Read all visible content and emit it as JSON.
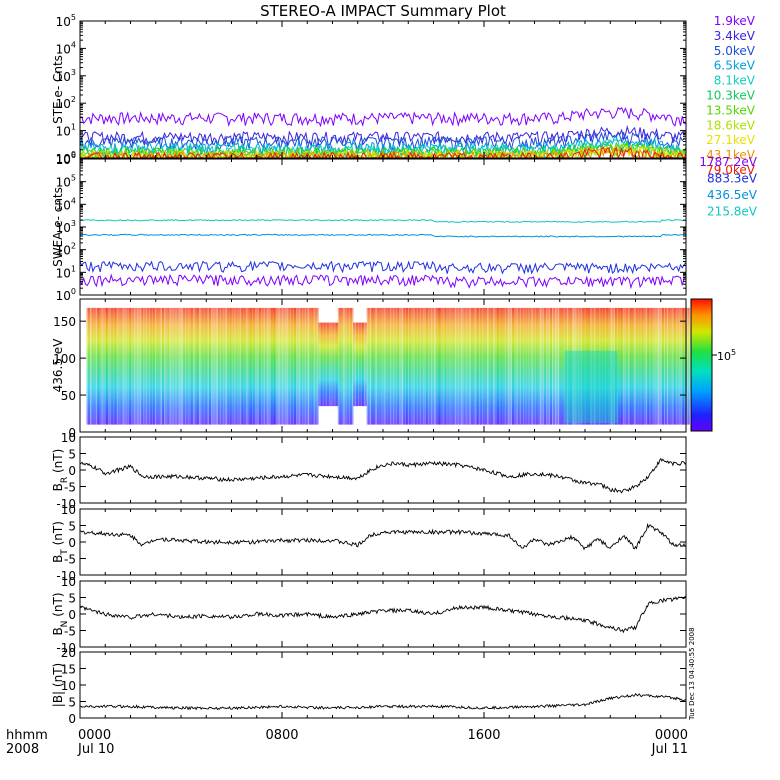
{
  "title": "STEREO-A IMPACT Summary Plot",
  "stamp": "Tue Dec 13 04:40:55 2008",
  "x_axis": {
    "row1": {
      "label": "hhmm",
      "ticks": [
        "0000",
        "0800",
        "1600",
        "0000"
      ]
    },
    "row2": {
      "label": "2008",
      "ticks": [
        "Jul 10",
        "",
        "",
        "Jul 11"
      ]
    },
    "tick_hours": [
      0,
      8,
      16,
      24
    ]
  },
  "legend": {
    "ste": [
      {
        "label": "1.9keV",
        "color": "#8000ff"
      },
      {
        "label": "3.4keV",
        "color": "#3a22e0"
      },
      {
        "label": "5.0keV",
        "color": "#1d4fd8"
      },
      {
        "label": "6.5keV",
        "color": "#00a0e0"
      },
      {
        "label": "8.1keV",
        "color": "#10d0c0"
      },
      {
        "label": "10.3keV",
        "color": "#10c860"
      },
      {
        "label": "13.5keV",
        "color": "#50d800"
      },
      {
        "label": "18.6keV",
        "color": "#b0e000"
      },
      {
        "label": "27.1keV",
        "color": "#e8e000"
      },
      {
        "label": "43.1keV",
        "color": "#f09000"
      },
      {
        "label": "79.0keV",
        "color": "#e82000"
      }
    ],
    "swea": [
      {
        "label": "1787.2eV",
        "color": "#8000ff"
      },
      {
        "label": "883.3eV",
        "color": "#2030e0"
      },
      {
        "label": "436.5eV",
        "color": "#0090e0"
      },
      {
        "label": "215.8eV",
        "color": "#10c8c0"
      }
    ]
  },
  "chart_data": [
    {
      "type": "line",
      "panel": "STE",
      "ylabel": "STE e- Cnts",
      "yscale": "log",
      "ylim": [
        1,
        100000
      ],
      "yticks": [
        "10^0",
        "10^1",
        "10^2",
        "10^3",
        "10^4",
        "10^5"
      ],
      "x_hours": [
        0,
        24
      ],
      "series": [
        {
          "name": "1.9keV",
          "level": 30
        },
        {
          "name": "3.4keV",
          "level": 6
        },
        {
          "name": "5.0keV",
          "level": 4
        },
        {
          "name": "6.5keV",
          "level": 2.5
        },
        {
          "name": "8.1keV",
          "level": 2
        },
        {
          "name": "10.3keV",
          "level": 1.7
        },
        {
          "name": "13.5keV",
          "level": 1.5
        },
        {
          "name": "18.6keV",
          "level": 1.3
        },
        {
          "name": "27.1keV",
          "level": 1.2
        },
        {
          "name": "43.1keV",
          "level": 1.1
        },
        {
          "name": "79.0keV",
          "level": 1.05
        }
      ]
    },
    {
      "type": "line",
      "panel": "SWEA",
      "ylabel": "SWEA e- cnts",
      "yscale": "log",
      "ylim": [
        1,
        1000000
      ],
      "yticks": [
        "10^0",
        "10^1",
        "10^2",
        "10^3",
        "10^4",
        "10^5",
        "10^6"
      ],
      "x_hours": [
        0,
        24
      ],
      "series": [
        {
          "name": "215.8eV",
          "level": 2000
        },
        {
          "name": "436.5eV",
          "level": 450
        },
        {
          "name": "883.3eV",
          "level": 20
        },
        {
          "name": "1787.2eV",
          "level": 5
        }
      ]
    },
    {
      "type": "heatmap",
      "panel": "PAD",
      "ylabel": "436.5 eV",
      "ylim": [
        0,
        180
      ],
      "yticks": [
        0,
        50,
        100,
        150
      ],
      "colorbar_label": "10^5",
      "x_hours": [
        0,
        24
      ]
    },
    {
      "type": "line",
      "panel": "BR",
      "ylabel": "B_R (nT)",
      "ylim": [
        -10,
        10
      ],
      "yticks": [
        10,
        5,
        0,
        -5,
        -10
      ],
      "x": [
        0,
        0.5,
        1,
        1.5,
        2,
        2.5,
        3,
        4,
        5,
        6,
        7,
        8,
        9,
        10,
        11,
        11.5,
        12,
        12.5,
        13,
        14,
        15,
        16,
        17,
        18,
        19,
        20,
        20.5,
        21,
        21.5,
        22,
        22.5,
        23,
        23.5,
        24
      ],
      "y": [
        2,
        1,
        -1,
        0,
        1,
        -2,
        -2,
        -2,
        -2.5,
        -3,
        -2.5,
        -2,
        -1.5,
        -2,
        -2.5,
        0,
        1.5,
        2,
        1.5,
        2,
        1.5,
        0,
        -2,
        -1,
        -2,
        -4,
        -4,
        -6,
        -6.5,
        -5,
        -2,
        3,
        2,
        2
      ]
    },
    {
      "type": "line",
      "panel": "BT",
      "ylabel": "B_T (nT)",
      "ylim": [
        -10,
        10
      ],
      "yticks": [
        10,
        5,
        0,
        -5,
        -10
      ],
      "x": [
        0,
        1,
        2,
        2.5,
        3,
        4,
        5,
        6,
        7,
        8,
        9,
        10,
        11,
        11.5,
        12,
        13,
        14,
        15,
        16,
        17,
        17.5,
        18,
        18.5,
        19,
        19.5,
        20,
        20.5,
        21,
        21.5,
        22,
        22.5,
        23,
        23.5,
        24
      ],
      "y": [
        3,
        2.5,
        2,
        -1,
        1,
        0.5,
        0,
        0,
        0,
        0.5,
        0.5,
        0.5,
        -1,
        2,
        3,
        3,
        3,
        3,
        2.5,
        2,
        -2,
        1,
        -1,
        0,
        1.5,
        -2,
        1,
        -2,
        2,
        -2,
        5,
        3,
        -1,
        -1
      ]
    },
    {
      "type": "line",
      "panel": "BN",
      "ylabel": "B_N (nT)",
      "ylim": [
        -10,
        10
      ],
      "yticks": [
        10,
        5,
        0,
        -5,
        -10
      ],
      "x": [
        0,
        1,
        2,
        3,
        4,
        5,
        6,
        7,
        8,
        9,
        10,
        11,
        12,
        13,
        14,
        15,
        16,
        17,
        18,
        19,
        20,
        21,
        21.5,
        22,
        22.5,
        23,
        24
      ],
      "y": [
        2,
        0,
        -1,
        0,
        -1,
        -0.5,
        -1,
        0,
        -0.5,
        0,
        -1,
        0,
        1,
        1,
        0,
        2,
        2,
        1,
        0,
        -1,
        -2,
        -4,
        -5,
        -4,
        3,
        4,
        5
      ]
    },
    {
      "type": "line",
      "panel": "B",
      "ylabel": "|B| (nT)",
      "ylim": [
        0,
        20
      ],
      "yticks": [
        20,
        15,
        10,
        5,
        0
      ],
      "x": [
        0,
        2,
        4,
        6,
        8,
        10,
        12,
        14,
        16,
        18,
        20,
        21,
        22,
        23,
        24
      ],
      "y": [
        3.5,
        3.5,
        3,
        3,
        3.5,
        3,
        3.5,
        3.5,
        3,
        3.5,
        4,
        6,
        7,
        6.5,
        5.5
      ]
    }
  ]
}
